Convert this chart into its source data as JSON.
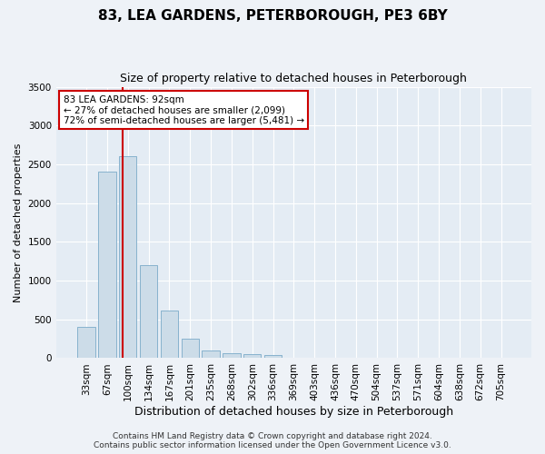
{
  "title": "83, LEA GARDENS, PETERBOROUGH, PE3 6BY",
  "subtitle": "Size of property relative to detached houses in Peterborough",
  "xlabel": "Distribution of detached houses by size in Peterborough",
  "ylabel": "Number of detached properties",
  "categories": [
    "33sqm",
    "67sqm",
    "100sqm",
    "134sqm",
    "167sqm",
    "201sqm",
    "235sqm",
    "268sqm",
    "302sqm",
    "336sqm",
    "369sqm",
    "403sqm",
    "436sqm",
    "470sqm",
    "504sqm",
    "537sqm",
    "571sqm",
    "604sqm",
    "638sqm",
    "672sqm",
    "705sqm"
  ],
  "values": [
    400,
    2400,
    2600,
    1200,
    620,
    250,
    100,
    60,
    55,
    40,
    5,
    3,
    2,
    1,
    0,
    0,
    0,
    0,
    0,
    0,
    0
  ],
  "bar_color": "#ccdce8",
  "bar_edge_color": "#7aaac8",
  "vline_pos": 1.75,
  "vline_color": "#cc0000",
  "annotation_text": "83 LEA GARDENS: 92sqm\n← 27% of detached houses are smaller (2,099)\n72% of semi-detached houses are larger (5,481) →",
  "annotation_box_color": "white",
  "annotation_box_edge_color": "#cc0000",
  "ylim": [
    0,
    3500
  ],
  "yticks": [
    0,
    500,
    1000,
    1500,
    2000,
    2500,
    3000,
    3500
  ],
  "footer": "Contains HM Land Registry data © Crown copyright and database right 2024.\nContains public sector information licensed under the Open Government Licence v3.0.",
  "bg_color": "#eef2f7",
  "plot_bg_color": "#e4ecf4",
  "grid_color": "white",
  "title_fontsize": 11,
  "subtitle_fontsize": 9,
  "ylabel_fontsize": 8,
  "xlabel_fontsize": 9,
  "tick_fontsize": 7.5,
  "footer_fontsize": 6.5
}
